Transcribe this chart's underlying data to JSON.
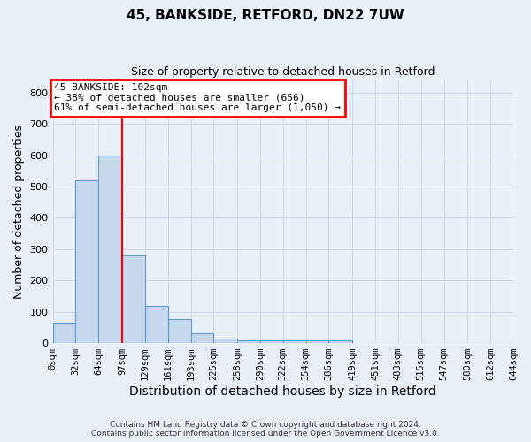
{
  "title1": "45, BANKSIDE, RETFORD, DN22 7UW",
  "title2": "Size of property relative to detached houses in Retford",
  "xlabel": "Distribution of detached houses by size in Retford",
  "ylabel": "Number of detached properties",
  "bar_edges": [
    0,
    32,
    64,
    97,
    129,
    161,
    193,
    225,
    258,
    290,
    322,
    354,
    386,
    419,
    451,
    483,
    515,
    547,
    580,
    612,
    644
  ],
  "bar_heights": [
    65,
    520,
    600,
    280,
    120,
    77,
    30,
    15,
    10,
    10,
    8,
    8,
    8,
    0,
    0,
    0,
    0,
    0,
    0,
    0
  ],
  "bar_color": "#c5d8ed",
  "bar_edge_color": "#5b9bd5",
  "red_line_x": 97,
  "annotation_text": "45 BANKSIDE: 102sqm\n← 38% of detached houses are smaller (656)\n61% of semi-detached houses are larger (1,050) →",
  "annotation_box_color": "white",
  "annotation_box_edge_color": "red",
  "ylim": [
    0,
    840
  ],
  "yticks": [
    0,
    100,
    200,
    300,
    400,
    500,
    600,
    700,
    800
  ],
  "grid_color": "#d0d8e8",
  "background_color": "#eaf0f8",
  "footer_line1": "Contains HM Land Registry data © Crown copyright and database right 2024.",
  "footer_line2": "Contains public sector information licensed under the Open Government Licence v3.0."
}
